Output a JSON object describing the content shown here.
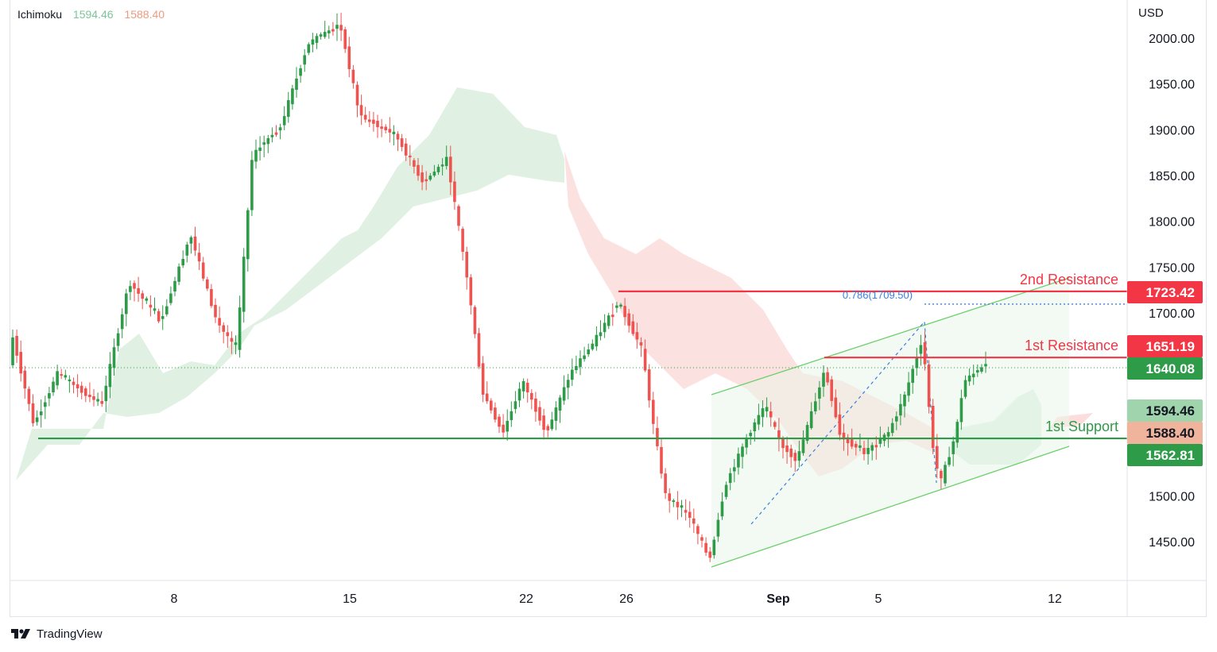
{
  "indicator": {
    "name": "Ichimoku",
    "value1": "1594.46",
    "value2": "1588.40"
  },
  "currency": "USD",
  "brand": "TradingView",
  "colors": {
    "up": "#26a69a",
    "down": "#ef5350",
    "candle_up": "#2e9b48",
    "candle_down": "#ef5350",
    "resistance": "#f23645",
    "support": "#2e9b48",
    "cloud_bull": "#d6ecd9",
    "cloud_bear": "#fbd9d9",
    "channel": "#6ccf6c",
    "fib": "#3a7fde"
  },
  "chart_data": {
    "type": "candlestick",
    "y_axis_ticks": [
      "2000.00",
      "1950.00",
      "1900.00",
      "1850.00",
      "1800.00",
      "1750.00",
      "1700.00",
      "1500.00",
      "1450.00"
    ],
    "ylim": [
      1405,
      2050
    ],
    "x_axis_ticks": [
      "8",
      "15",
      "22",
      "26",
      "Sep",
      "5",
      "12"
    ],
    "levels": [
      {
        "name": "2nd Resistance",
        "value": 1723.42,
        "label": "1723.42",
        "color": "resistance"
      },
      {
        "name": "1st Resistance",
        "value": 1651.19,
        "label": "1651.19",
        "color": "resistance"
      },
      {
        "name": "1st Support",
        "value": 1562.81,
        "label": "1562.81",
        "color": "support"
      }
    ],
    "price_badges": [
      {
        "label": "1640.08",
        "value": 1640.08,
        "color": "#2e9b48"
      },
      {
        "label": "1594.46",
        "value": 1594.46,
        "color": "#9fd4ac"
      },
      {
        "label": "1588.40",
        "value": 1588.4,
        "color": "#f0b39c"
      }
    ],
    "last_price": 1640.08,
    "fib_label": "0.786(1709.50)",
    "fib_value": 1709.5,
    "ichimoku_value1": 1594.46,
    "ichimoku_value2": 1588.4
  }
}
